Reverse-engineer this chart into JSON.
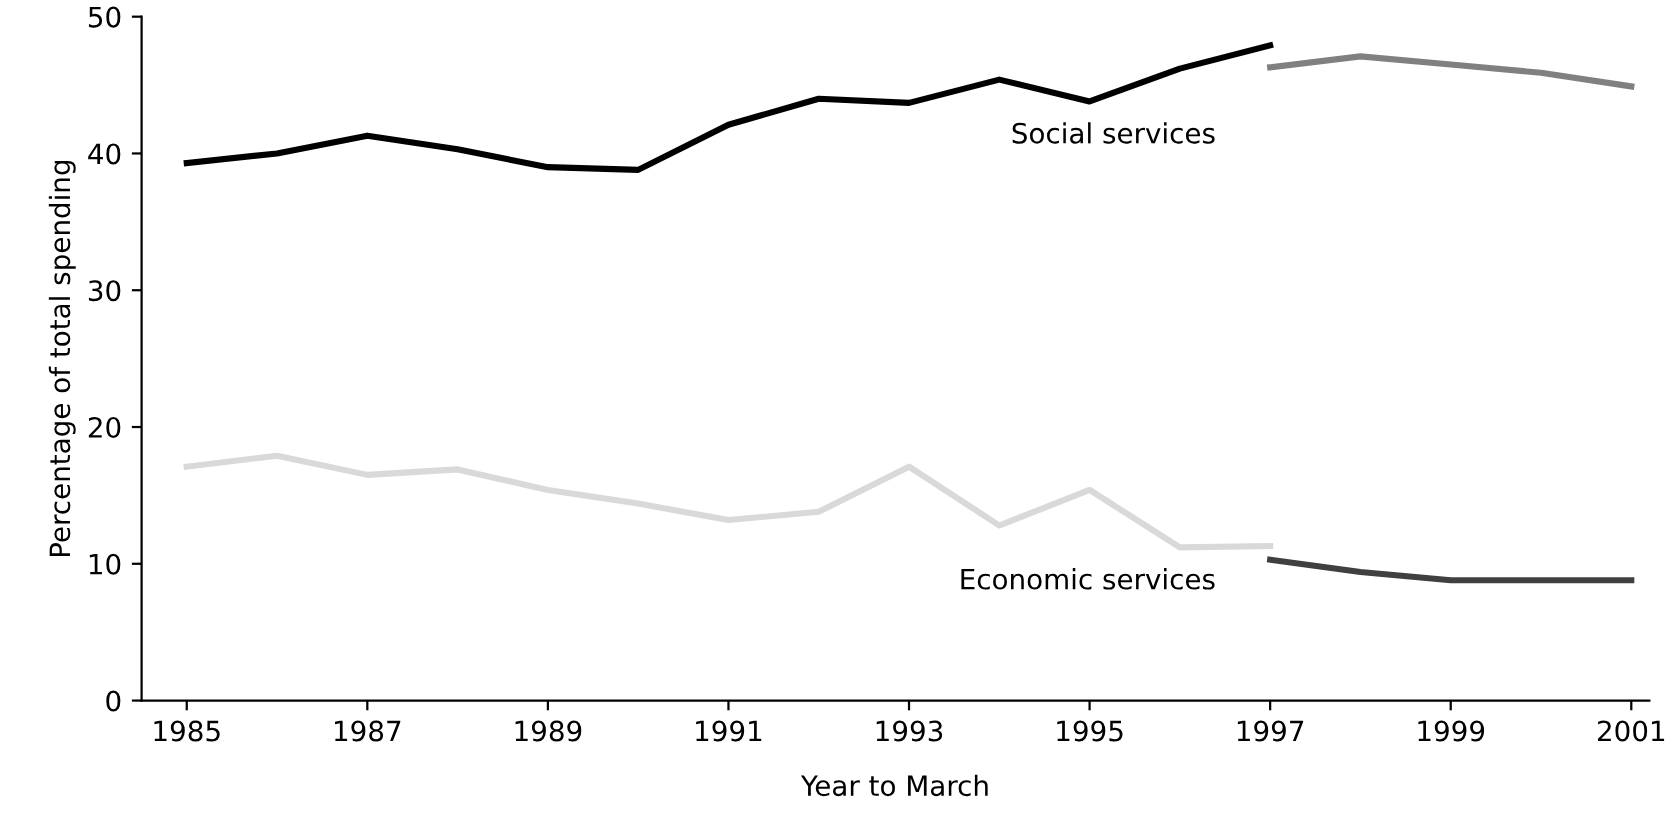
{
  "chart_data": {
    "type": "line",
    "xlabel": "Year to March",
    "ylabel": "Percentage of total spending",
    "series": [
      {
        "name": "Social services",
        "color": "#000000",
        "x": [
          1985,
          1986,
          1987,
          1988,
          1989,
          1990,
          1991,
          1992,
          1993,
          1994,
          1995,
          1996,
          1997
        ],
        "values": [
          39.3,
          40.0,
          41.3,
          40.3,
          39.0,
          38.8,
          42.1,
          44.0,
          43.7,
          45.4,
          43.8,
          46.2,
          47.9
        ]
      },
      {
        "color": "#808080",
        "x": [
          1997,
          1998,
          1999,
          2000,
          2001
        ],
        "values": [
          46.3,
          47.1,
          46.5,
          45.9,
          44.9
        ]
      },
      {
        "name": "Economic services",
        "color": "#d9d9d9",
        "x": [
          1985,
          1986,
          1987,
          1988,
          1989,
          1990,
          1991,
          1992,
          1993,
          1994,
          1995,
          1996,
          1997
        ],
        "values": [
          17.1,
          17.9,
          16.5,
          16.9,
          15.4,
          14.4,
          13.2,
          13.8,
          17.1,
          12.8,
          15.4,
          11.2,
          11.3
        ]
      },
      {
        "color": "#404040",
        "x": [
          1997,
          1998,
          1999,
          2000,
          2001
        ],
        "values": [
          10.3,
          9.4,
          8.8,
          8.8,
          8.8
        ]
      }
    ],
    "xlim": [
      1984.5,
      2001.2
    ],
    "xticks": [
      1985,
      1987,
      1989,
      1991,
      1993,
      1995,
      1997,
      1999,
      2001
    ],
    "ylim": [
      0,
      50
    ],
    "yticks": [
      0,
      10,
      20,
      30,
      40,
      50
    ],
    "grid": false,
    "legend": false,
    "marker": "none",
    "line_style": "solid"
  }
}
